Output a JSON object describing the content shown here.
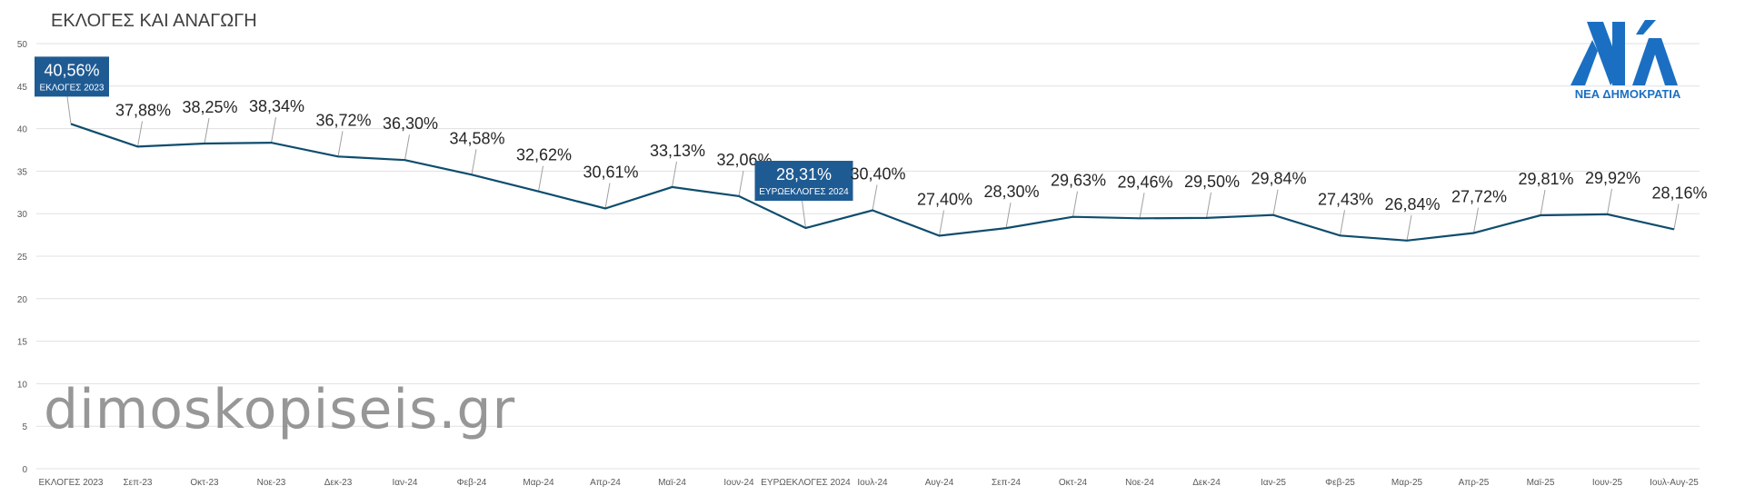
{
  "page": {
    "title": "ΕΚΛΟΓΕΣ ΚΑΙ ΑΝΑΓΩΓΗ"
  },
  "watermark": {
    "text": "dimoskopiseis.gr"
  },
  "logo": {
    "subtitle": "ΝΕΑ ΔΗΜΟΚΡΑΤΙΑ",
    "color": "#1b6fc2"
  },
  "colors": {
    "line": "#0e4d6e",
    "highlight_box": "#1f5b93",
    "grid": "#e0e0e0"
  },
  "chart_data": {
    "type": "line",
    "title": "ΕΚΛΟΓΕΣ ΚΑΙ ΑΝΑΓΩΓΗ",
    "xlabel": "",
    "ylabel": "",
    "ylim": [
      0,
      50
    ],
    "yticks": [
      0,
      5,
      10,
      15,
      20,
      25,
      30,
      35,
      40,
      45,
      50
    ],
    "grid": true,
    "legend": "none",
    "categories": [
      "ΕΚΛΟΓΕΣ 2023",
      "Σεπ-23",
      "Οκτ-23",
      "Νοε-23",
      "Δεκ-23",
      "Ιαν-24",
      "Φεβ-24",
      "Μαρ-24",
      "Απρ-24",
      "Μαϊ-24",
      "Ιουν-24",
      "ΕΥΡΩΕΚΛΟΓΕΣ 2024",
      "Ιουλ-24",
      "Αυγ-24",
      "Σεπ-24",
      "Οκτ-24",
      "Νοε-24",
      "Δεκ-24",
      "Ιαν-25",
      "Φεβ-25",
      "Μαρ-25",
      "Απρ-25",
      "Μαϊ-25",
      "Ιουν-25",
      "Ιουλ-Αυγ-25"
    ],
    "values": [
      40.56,
      37.88,
      38.25,
      38.34,
      36.72,
      36.3,
      34.58,
      32.62,
      30.61,
      33.13,
      32.06,
      28.31,
      30.4,
      27.4,
      28.3,
      29.63,
      29.46,
      29.5,
      29.84,
      27.43,
      26.84,
      27.72,
      29.81,
      29.92,
      28.16
    ],
    "labels": [
      "40,56%",
      "37,88%",
      "38,25%",
      "38,34%",
      "36,72%",
      "36,30%",
      "34,58%",
      "32,62%",
      "30,61%",
      "33,13%",
      "32,06%",
      "28,31%",
      "30,40%",
      "27,40%",
      "28,30%",
      "29,63%",
      "29,46%",
      "29,50%",
      "29,84%",
      "27,43%",
      "26,84%",
      "27,72%",
      "29,81%",
      "29,92%",
      "28,16%"
    ],
    "highlights": [
      {
        "index": 0,
        "caption": "ΕΚΛΟΓΕΣ 2023"
      },
      {
        "index": 11,
        "caption": "ΕΥΡΩΕΚΛΟΓΕΣ 2024"
      }
    ]
  }
}
